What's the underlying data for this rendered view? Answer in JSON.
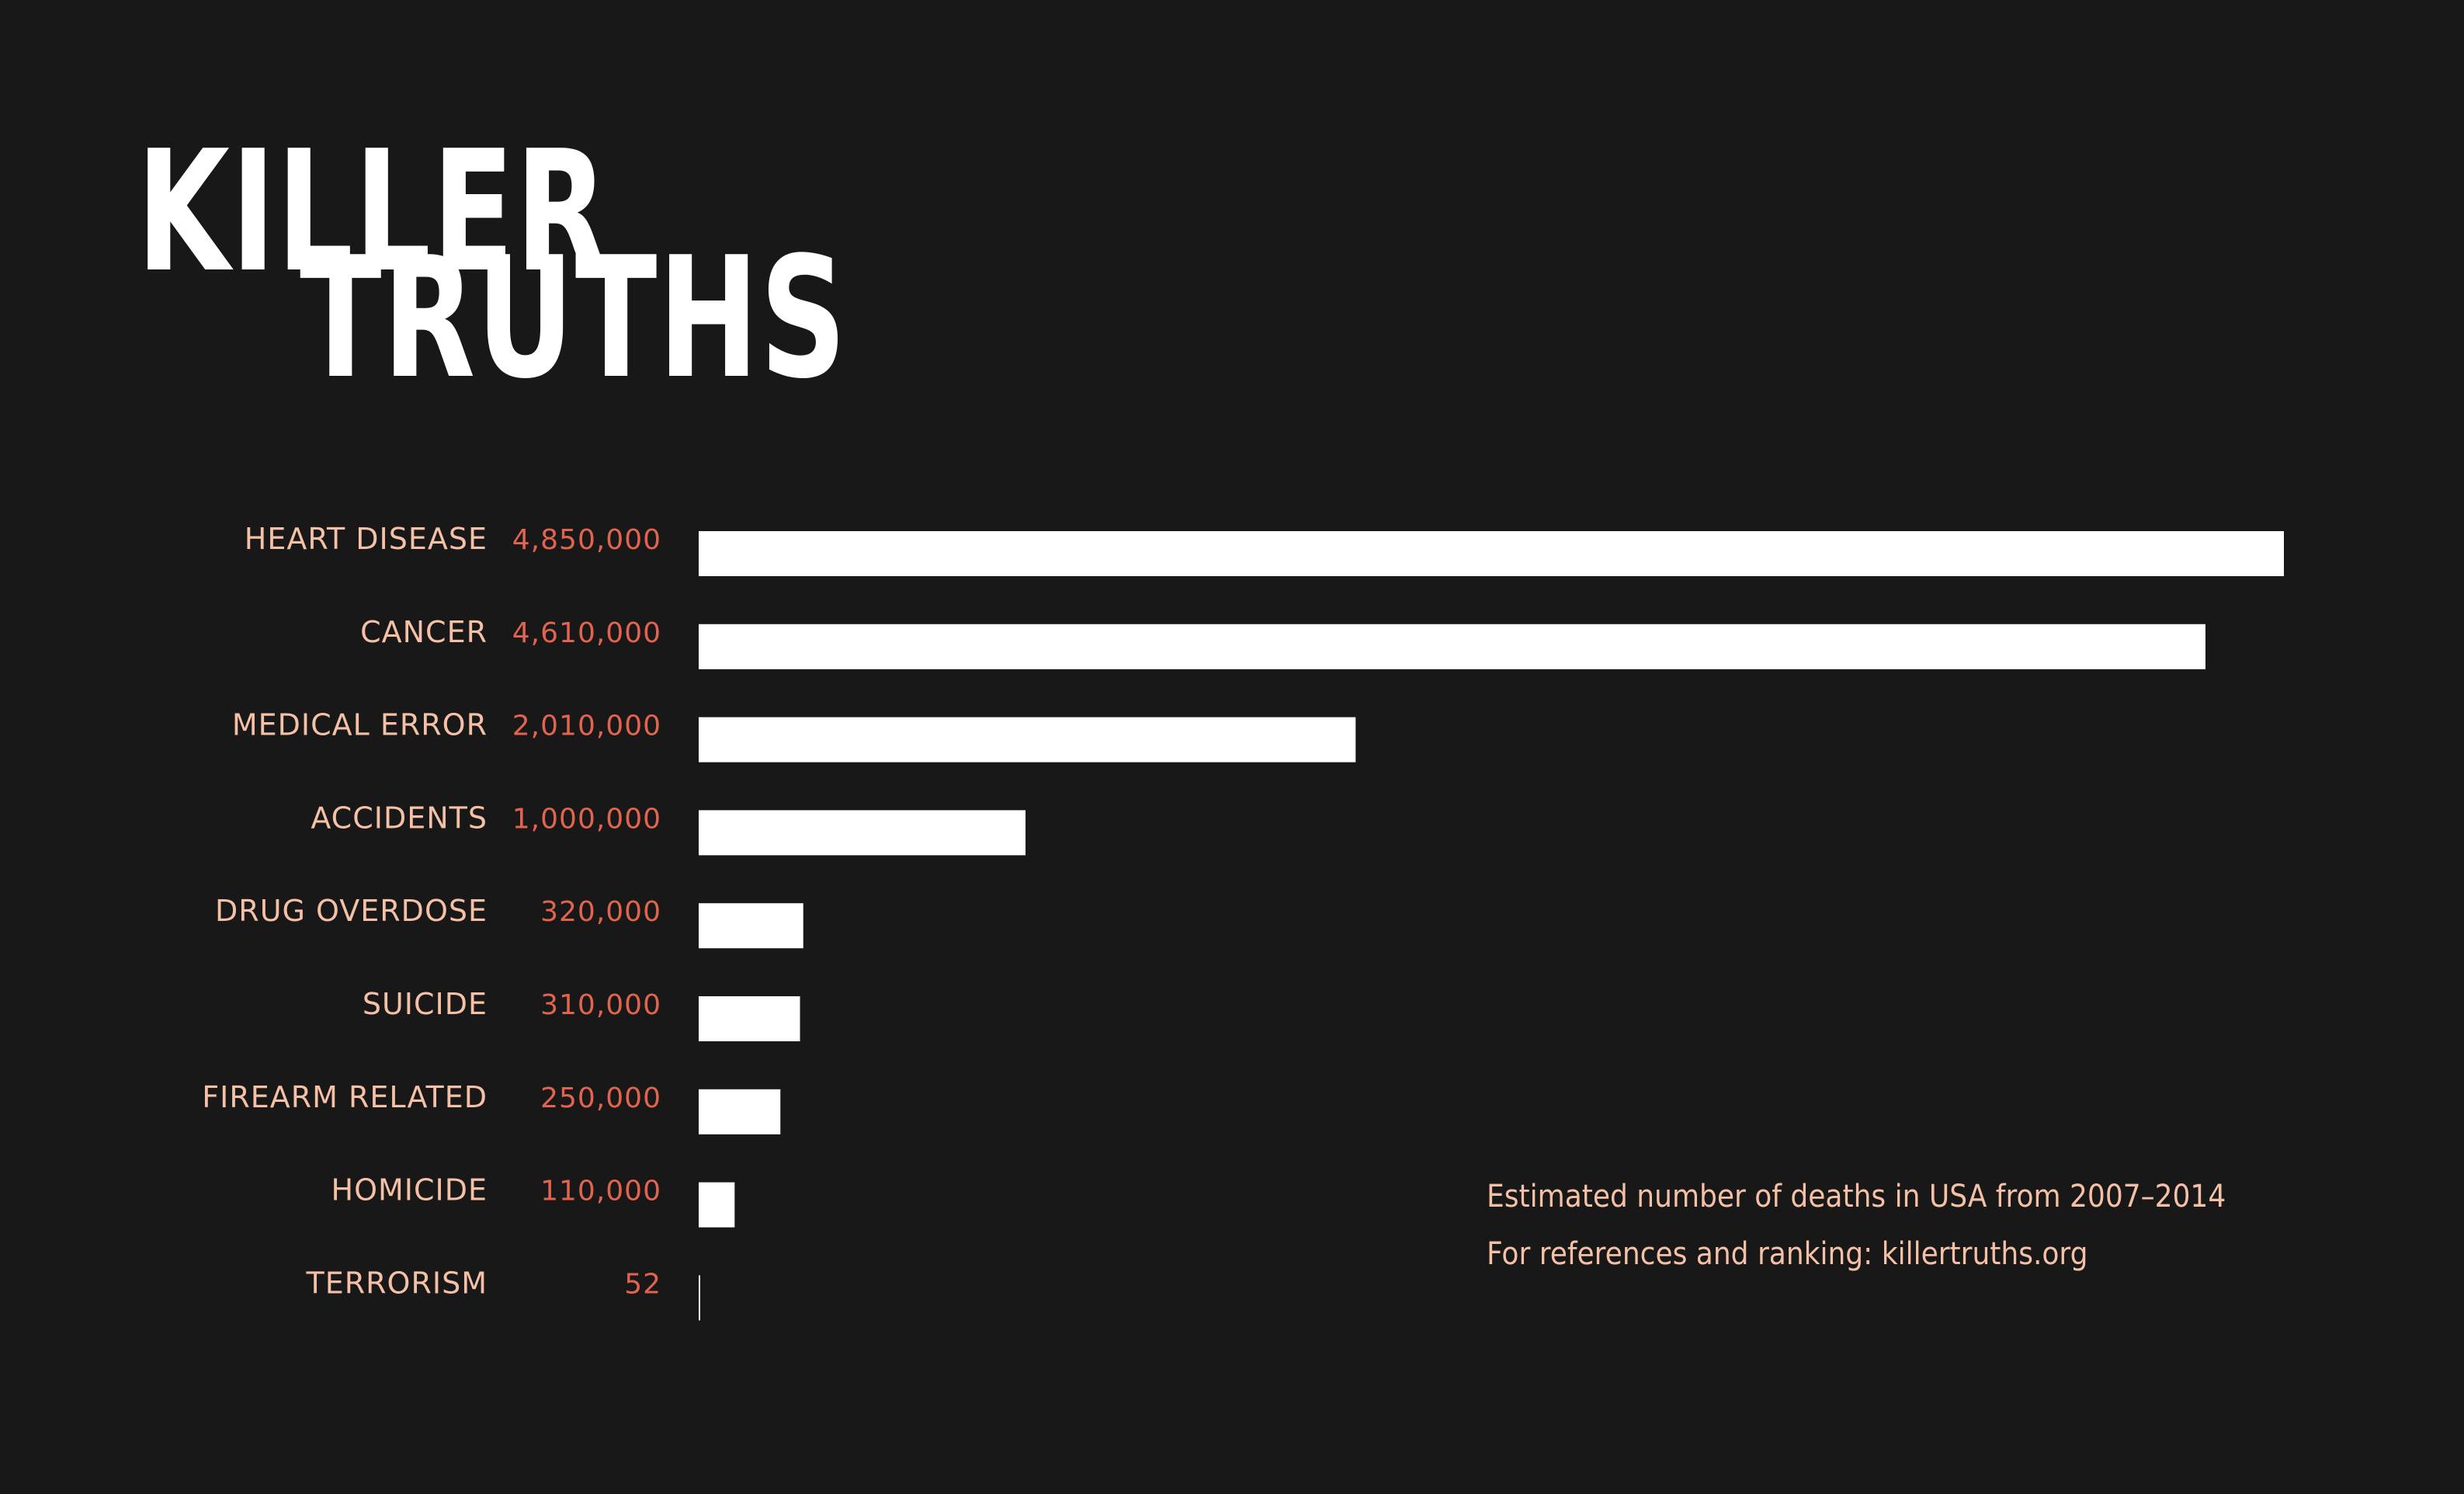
{
  "title": {
    "line1": "KILLER",
    "line2": "TRUTHS"
  },
  "notes": {
    "line1": "Estimated number of deaths in USA from 2007–2014",
    "line2": "For references and ranking: killertruths.org"
  },
  "colors": {
    "background": "#181818",
    "bar": "#ffffff",
    "category_label": "#f5c1a6",
    "value_label": "#e2644f"
  },
  "chart_data": {
    "type": "bar",
    "orientation": "horizontal",
    "title": "KILLER TRUTHS",
    "categories": [
      "HEART DISEASE",
      "CANCER",
      "MEDICAL ERROR",
      "ACCIDENTS",
      "DRUG OVERDOSE",
      "SUICIDE",
      "FIREARM RELATED",
      "HOMICIDE",
      "TERRORISM"
    ],
    "values": [
      4850000,
      4610000,
      2010000,
      1000000,
      320000,
      310000,
      250000,
      110000,
      52
    ],
    "value_labels": [
      "4,850,000",
      "4,610,000",
      "2,010,000",
      "1,000,000",
      "320,000",
      "310,000",
      "250,000",
      "110,000",
      "52"
    ],
    "xlim": [
      0,
      4850000
    ],
    "grid": false,
    "legend": "none"
  }
}
